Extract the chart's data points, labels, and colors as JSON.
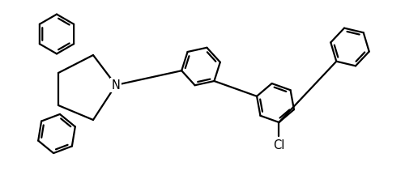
{
  "background_color": "#ffffff",
  "line_color": "#000000",
  "line_width": 1.6,
  "font_size": 10.5,
  "N_label": "N",
  "Cl_label": "Cl",
  "xlim": [
    0,
    12
  ],
  "ylim": [
    0,
    7.5
  ],
  "figsize": [
    5.0,
    2.37
  ],
  "dpi": 100
}
